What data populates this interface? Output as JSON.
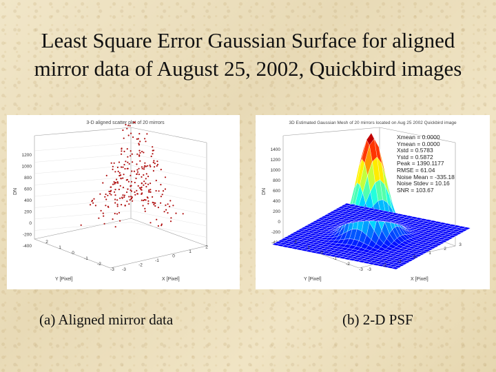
{
  "slide": {
    "title_line1": "Least Square Error Gaussian Surface for aligned",
    "title_line2": "mirror data of August 25, 2002, Quickbird images",
    "caption_a": "(a) Aligned mirror data",
    "caption_b": "(b) 2-D PSF"
  },
  "chart_data": [
    {
      "type": "scatter",
      "subtype": "3d-scatter",
      "title": "3-D aligned scatter plot of 20 mirrors",
      "xlabel": "X [Pixel]",
      "ylabel": "Y [Pixel]",
      "zlabel": "DN",
      "x_ticks": [
        "-3",
        "-2",
        "-1",
        "0",
        "1",
        "2"
      ],
      "y_ticks": [
        "-3",
        "-2",
        "-1",
        "0",
        "1",
        "2"
      ],
      "z_ticks": [
        "-400",
        "-200",
        "0",
        "200",
        "400",
        "600",
        "800",
        "1000",
        "1200"
      ],
      "grid": true,
      "marker_color": "#b01010"
    },
    {
      "type": "surface",
      "title": "3D Estimated Gaussian Mesh of 20 mirrors located on Aug 25 2002 Quickbird image",
      "xlabel": "X [Pixel]",
      "ylabel": "Y [Pixel]",
      "zlabel": "DN",
      "x_ticks": [
        "-3",
        "-2",
        "-1",
        "0",
        "1",
        "2",
        "3"
      ],
      "y_ticks": [
        "-3",
        "-2",
        "-1",
        "0",
        "1",
        "2"
      ],
      "z_ticks": [
        "-400",
        "-200",
        "0",
        "200",
        "400",
        "600",
        "800",
        "1000",
        "1200",
        "1400"
      ],
      "grid": true,
      "colormap": "jet",
      "stats": [
        "Xmean = 0.0000",
        "Ymean = 0.0000",
        "Xstd = 0.5783",
        "Ystd = 0.5872",
        "Peak = 1390.1177",
        "RMSE = 61.04",
        "Noise Mean = -335.18",
        "Noise Stdev = 10.16",
        "SNR = 103.67"
      ]
    }
  ]
}
